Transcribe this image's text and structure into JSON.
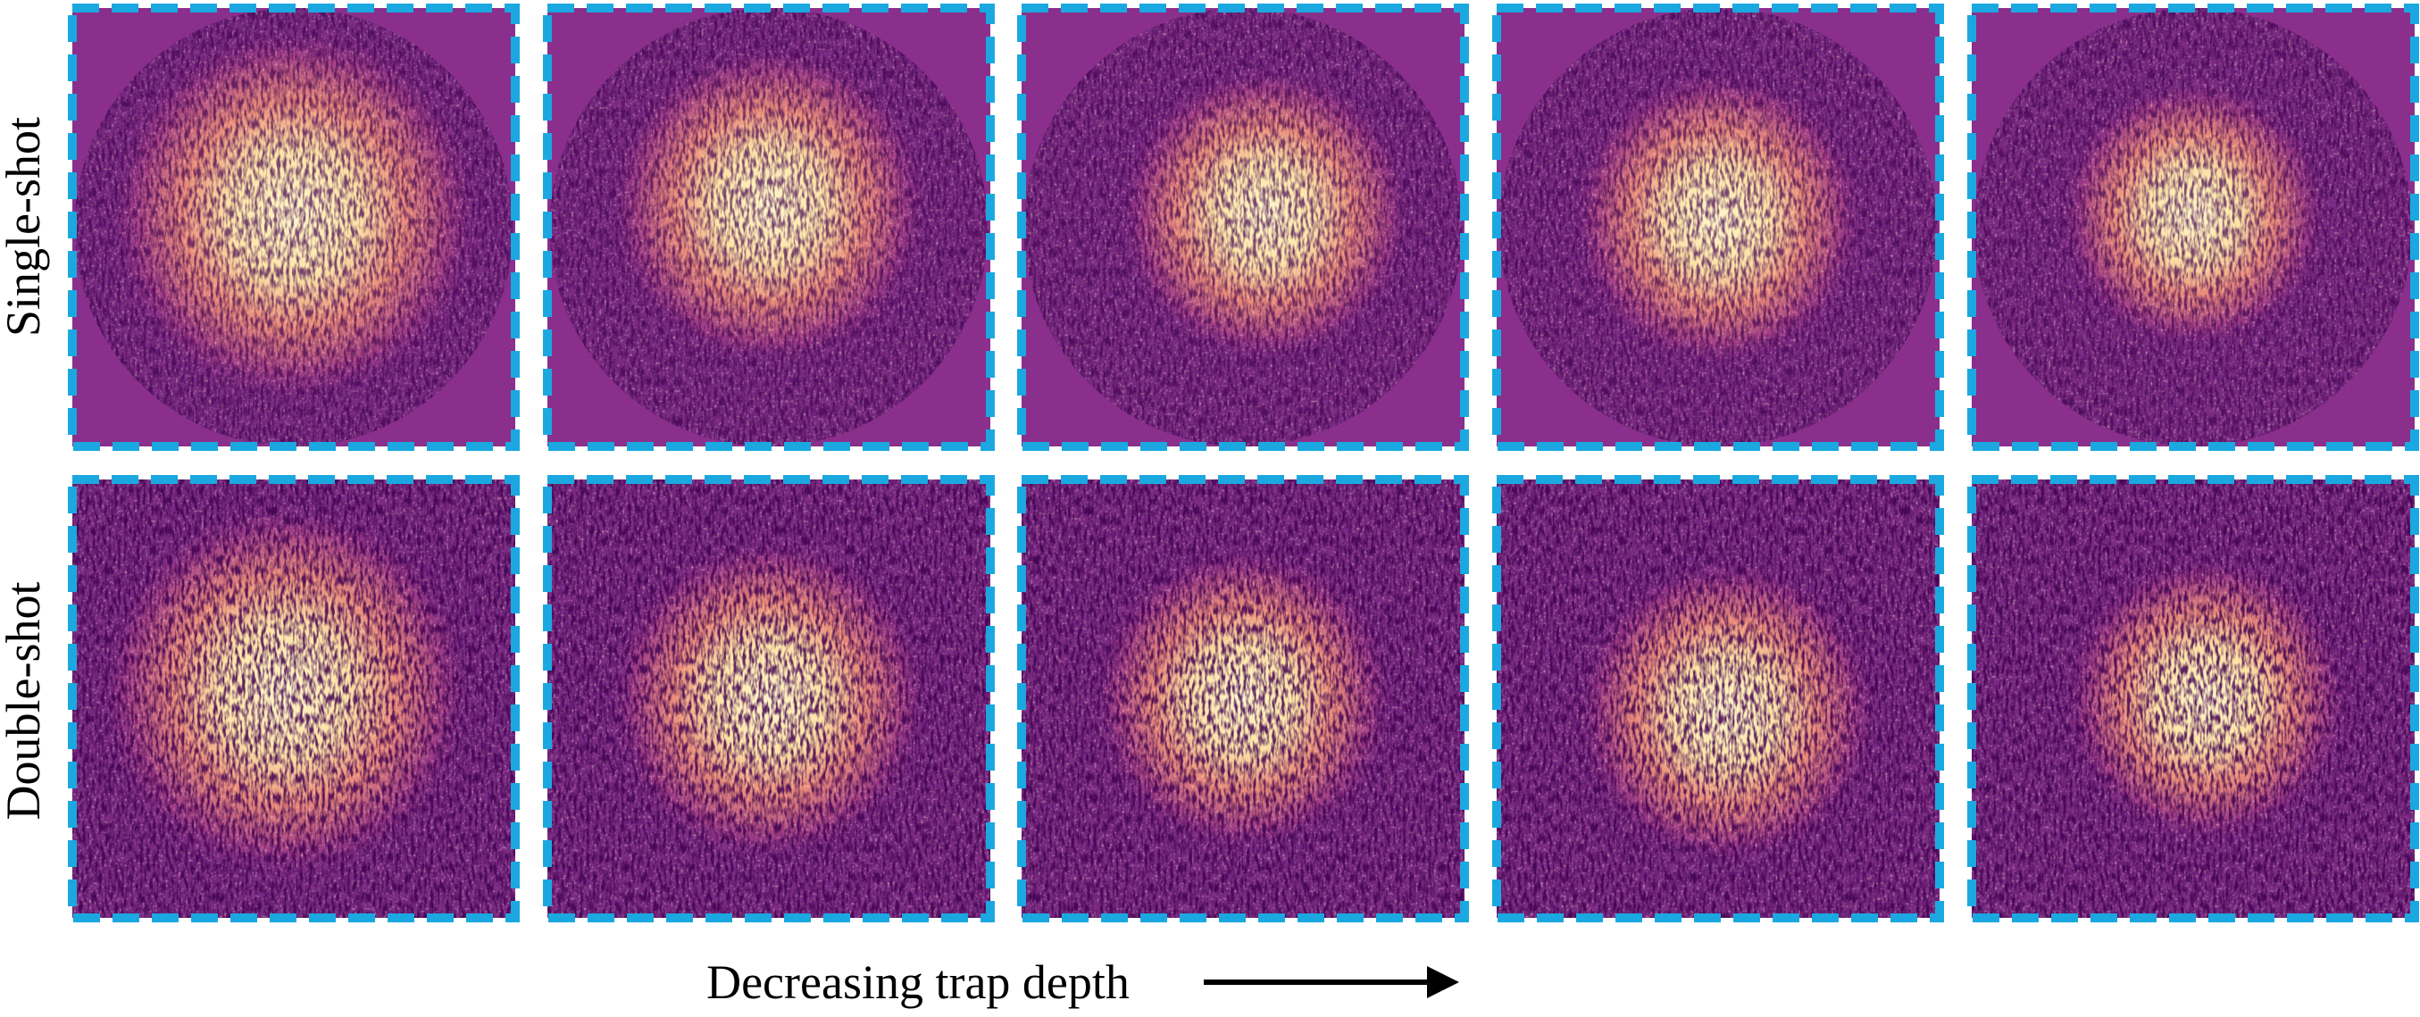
{
  "rows": [
    {
      "label": "Single-shot"
    },
    {
      "label": "Double-shot"
    }
  ],
  "x_label": "Decreasing trap depth"
}
